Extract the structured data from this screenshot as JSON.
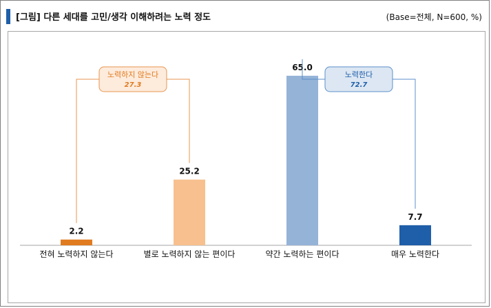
{
  "header": {
    "title": "[그림] 다른 세대를 고민/생각 이해하려는 노력 정도",
    "base_note": "(Base=전체, N=600, %)"
  },
  "colors": {
    "title_bar": "#1f5ea8",
    "bar_1": "#e07b1f",
    "bar_2": "#f7c08e",
    "bar_3": "#95b3d7",
    "bar_4": "#1f5ea8",
    "group_no_stroke": "#e8964f",
    "group_no_fill": "#fdebdc",
    "group_no_text": "#e07b1f",
    "group_yes_stroke": "#5b8fc9",
    "group_yes_fill": "#dce7f3",
    "group_yes_text": "#1f5ea8"
  },
  "chart_data": {
    "type": "bar",
    "categories": [
      "전혀 노력하지 않는다",
      "별로 노력하지 않는 편이다",
      "약간 노력하는 편이다",
      "매우 노력한다"
    ],
    "values": [
      2.2,
      25.2,
      65.0,
      7.7
    ],
    "value_labels": [
      "2.2",
      "25.2",
      "65.0",
      "7.7"
    ],
    "ylim": [
      0,
      70
    ],
    "grid": false,
    "groups": [
      {
        "label": "노력하지 않는다",
        "value": "27.3",
        "categories": [
          0,
          1
        ]
      },
      {
        "label": "노력한다",
        "value": "72.7",
        "categories": [
          2,
          3
        ]
      }
    ]
  }
}
